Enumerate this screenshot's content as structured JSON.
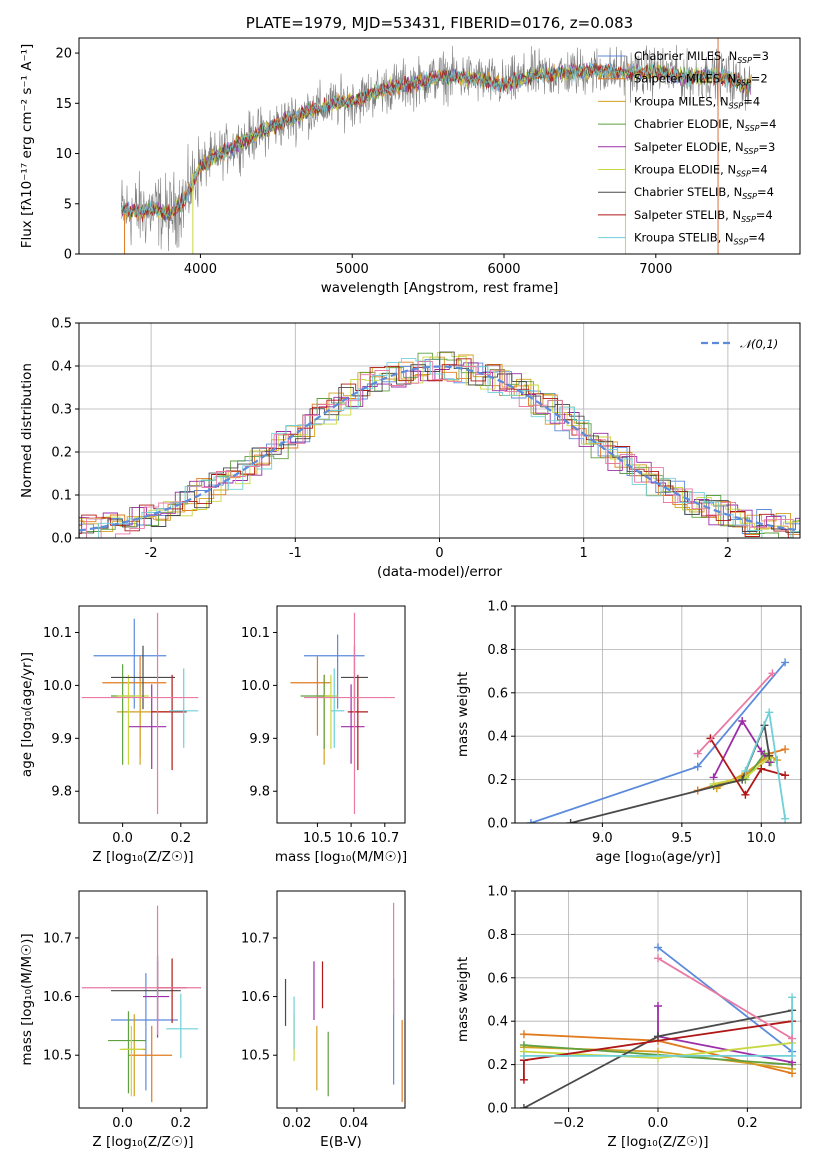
{
  "colors": {
    "series": [
      "#5B8BDB",
      "#E07B20",
      "#D4A020",
      "#5FA040",
      "#9C2EA8",
      "#C8D840",
      "#4A4A4A",
      "#B01818",
      "#6FD0D8"
    ],
    "pink": "#E87AA4",
    "model_spectrum": "#808080",
    "normal_curve": "#5B8BDB"
  },
  "chart_data": [
    {
      "id": "spectrum",
      "type": "line",
      "title": "PLATE=1979, MJD=53431, FIBERID=0176, z=0.083",
      "xlabel": "wavelength [Angstrom, rest frame]",
      "ylabel": "Flux [fλ10⁻¹⁷ erg cm⁻² s⁻¹ A⁻¹]",
      "xlim": [
        3200,
        7950
      ],
      "ylim": [
        0,
        21.5
      ],
      "xticks": [
        4000,
        5000,
        6000,
        7000
      ],
      "yticks": [
        0,
        5,
        10,
        15,
        20
      ],
      "grid": false,
      "legend_position": "top-right",
      "series": [
        {
          "name": "Chabrier MILES, N_SSP=3"
        },
        {
          "name": "Salpeter MILES, N_SSP=2"
        },
        {
          "name": "Kroupa MILES, N_SSP=4"
        },
        {
          "name": "Chabrier ELODIE, N_SSP=4"
        },
        {
          "name": "Salpeter ELODIE, N_SSP=3"
        },
        {
          "name": "Kroupa ELODIE, N_SSP=4"
        },
        {
          "name": "Chabrier STELIB, N_SSP=4"
        },
        {
          "name": "Salpeter STELIB, N_SSP=4"
        },
        {
          "name": "Kroupa STELIB, N_SSP=4"
        }
      ],
      "continuum": {
        "x": [
          3500,
          3600,
          3700,
          3800,
          3900,
          4000,
          4100,
          4200,
          4300,
          4400,
          4500,
          4600,
          4700,
          4800,
          4900,
          5000,
          5200,
          5400,
          5600,
          5800,
          6000,
          6200,
          6400,
          6600,
          6800,
          7000,
          7200,
          7400,
          7600
        ],
        "y": [
          4.3,
          4.2,
          4.4,
          4.0,
          5.5,
          8.7,
          9.7,
          10.6,
          11.4,
          12.2,
          12.8,
          13.5,
          14.2,
          14.6,
          15.0,
          15.2,
          16.4,
          17.0,
          17.7,
          17.5,
          16.8,
          17.8,
          18.0,
          18.3,
          18.0,
          18.2,
          17.6,
          17.8,
          16.8
        ]
      }
    },
    {
      "id": "residuals",
      "type": "line",
      "xlabel": "(data-model)/error",
      "ylabel": "Normed distribution",
      "xlim": [
        -2.5,
        2.5
      ],
      "ylim": [
        0,
        0.5
      ],
      "xticks": [
        -2,
        -1,
        0,
        1,
        2
      ],
      "yticks": [
        0.0,
        0.1,
        0.2,
        0.3,
        0.4,
        0.5
      ],
      "grid": true,
      "legend_position": "top-right",
      "legend": "𝒩(0,1)"
    },
    {
      "id": "age_vs_Z",
      "type": "scatter",
      "xlabel": "Z [log₁₀(Z/Z☉)]",
      "ylabel": "age  [log₁₀(age/yr)]",
      "xlim": [
        -0.15,
        0.29
      ],
      "ylim": [
        9.74,
        10.15
      ],
      "xticks": [
        0.0,
        0.2
      ],
      "yticks": [
        9.8,
        9.9,
        10.0,
        10.1
      ],
      "grid": false,
      "points": [
        {
          "x": 0.04,
          "y": 10.056,
          "xerr": [
            0.14,
            0.11
          ],
          "yerr": [
            0.1,
            0.07
          ]
        },
        {
          "x": 0.06,
          "y": 10.005,
          "xerr": [
            0.13,
            0.09
          ],
          "yerr": [
            0.14,
            0.05
          ]
        },
        {
          "x": 0.06,
          "y": 9.95,
          "xerr": [
            0.08,
            0.14
          ],
          "yerr": [
            0.1,
            0.06
          ]
        },
        {
          "x": 0.0,
          "y": 9.98,
          "xerr": [
            0.04,
            0.04
          ],
          "yerr": [
            0.13,
            0.06
          ]
        },
        {
          "x": 0.1,
          "y": 9.922,
          "xerr": [
            0.08,
            0.05
          ],
          "yerr": [
            0.08,
            0.08
          ]
        },
        {
          "x": 0.02,
          "y": 9.98,
          "xerr": [
            0.04,
            0.07
          ],
          "yerr": [
            0.13,
            0.04
          ]
        },
        {
          "x": 0.07,
          "y": 10.015,
          "xerr": [
            0.11,
            0.11
          ],
          "yerr": [
            0.06,
            0.06
          ]
        },
        {
          "x": 0.17,
          "y": 9.95,
          "xerr": [
            0.07,
            0.05
          ],
          "yerr": [
            0.11,
            0.07
          ]
        },
        {
          "x": 0.21,
          "y": 9.952,
          "xerr": [
            0.05,
            0.05
          ],
          "yerr": [
            0.07,
            0.08
          ]
        },
        {
          "x": 0.12,
          "y": 9.977,
          "xerr": [
            0.26,
            0.14
          ],
          "yerr": [
            0.22,
            0.16
          ]
        }
      ]
    },
    {
      "id": "age_vs_mass",
      "type": "scatter",
      "xlabel": "mass [log₁₀(M/M☉)]",
      "ylabel": "",
      "xlim": [
        10.38,
        10.76
      ],
      "ylim": [
        9.74,
        10.15
      ],
      "xticks": [
        10.5,
        10.6,
        10.7
      ],
      "yticks": [
        9.8,
        9.9,
        10.0,
        10.1
      ],
      "grid": false,
      "points": [
        {
          "x": 10.56,
          "y": 10.056,
          "xerr": [
            0.1,
            0.08
          ],
          "yerr": [
            0.1,
            0.04
          ]
        },
        {
          "x": 10.5,
          "y": 10.005,
          "xerr": [
            0.08,
            0.04
          ],
          "yerr": [
            0.1,
            0.05
          ]
        },
        {
          "x": 10.52,
          "y": 9.98,
          "xerr": [
            0.02,
            0.04
          ],
          "yerr": [
            0.13,
            0.04
          ]
        },
        {
          "x": 10.52,
          "y": 9.98,
          "xerr": [
            0.07,
            0.02
          ],
          "yerr": [
            0.1,
            0.04
          ]
        },
        {
          "x": 10.6,
          "y": 9.922,
          "xerr": [
            0.03,
            0.04
          ],
          "yerr": [
            0.07,
            0.08
          ]
        },
        {
          "x": 10.54,
          "y": 9.98,
          "xerr": [
            0.02,
            0.02
          ],
          "yerr": [
            0.1,
            0.04
          ]
        },
        {
          "x": 10.61,
          "y": 10.015,
          "xerr": [
            0.04,
            0.04
          ],
          "yerr": [
            0.06,
            0.06
          ]
        },
        {
          "x": 10.62,
          "y": 9.95,
          "xerr": [
            0.03,
            0.03
          ],
          "yerr": [
            0.11,
            0.07
          ]
        },
        {
          "x": 10.55,
          "y": 9.952,
          "xerr": [
            0.01,
            0.03
          ],
          "yerr": [
            0.07,
            0.08
          ]
        },
        {
          "x": 10.61,
          "y": 9.977,
          "xerr": [
            0.15,
            0.12
          ],
          "yerr": [
            0.22,
            0.16
          ]
        }
      ]
    },
    {
      "id": "mass_weight_vs_age",
      "type": "line",
      "xlabel": "age  [log₁₀(age/yr)]",
      "ylabel": "mass weight",
      "xlim": [
        8.45,
        10.25
      ],
      "ylim": [
        0,
        1
      ],
      "xticks": [
        9.0,
        9.5,
        10.0
      ],
      "yticks": [
        0.0,
        0.2,
        0.4,
        0.6,
        0.8,
        1.0
      ],
      "grid": true,
      "series": [
        {
          "x": [
            8.55,
            9.6,
            10.15
          ],
          "y": [
            0.0,
            0.26,
            0.74
          ]
        },
        {
          "x": [
            9.6,
            9.9,
            10.05,
            10.15
          ],
          "y": [
            0.15,
            0.22,
            0.32,
            0.34
          ]
        },
        {
          "x": [
            9.72,
            9.9,
            10.05,
            10.1
          ],
          "y": [
            0.16,
            0.23,
            0.31,
            0.29
          ]
        },
        {
          "x": [
            9.7,
            9.9,
            10.02,
            10.06
          ],
          "y": [
            0.17,
            0.2,
            0.32,
            0.28
          ]
        },
        {
          "x": [
            9.7,
            9.88,
            10.0,
            10.05
          ],
          "y": [
            0.21,
            0.47,
            0.33,
            0.28
          ]
        },
        {
          "x": [
            9.7,
            9.9,
            10.05
          ],
          "y": [
            0.18,
            0.21,
            0.3
          ]
        },
        {
          "x": [
            8.8,
            9.88,
            10.02,
            10.05
          ],
          "y": [
            0.0,
            0.2,
            0.45,
            0.31
          ]
        },
        {
          "x": [
            9.68,
            9.9,
            10.0,
            10.15
          ],
          "y": [
            0.39,
            0.13,
            0.25,
            0.22
          ]
        },
        {
          "x": [
            9.9,
            10.05,
            10.15
          ],
          "y": [
            0.24,
            0.51,
            0.02
          ]
        },
        {
          "x": [
            9.6,
            10.07
          ],
          "y": [
            0.32,
            0.69
          ]
        }
      ]
    },
    {
      "id": "mass_vs_Z",
      "type": "scatter",
      "xlabel": "Z [log₁₀(Z/Z☉)]",
      "ylabel": "mass [log₁₀(M/M☉)]",
      "xlim": [
        -0.15,
        0.29
      ],
      "ylim": [
        10.41,
        10.78
      ],
      "xticks": [
        0.0,
        0.2
      ],
      "yticks": [
        10.5,
        10.6,
        10.7
      ],
      "grid": false,
      "points": [
        {
          "x": 0.08,
          "y": 10.56,
          "xerr": [
            0.12,
            0.11
          ],
          "yerr": [
            0.12,
            0.08
          ]
        },
        {
          "x": 0.1,
          "y": 10.5,
          "xerr": [
            0.08,
            0.07
          ],
          "yerr": [
            0.08,
            0.05
          ]
        },
        {
          "x": 0.04,
          "y": 10.51,
          "xerr": [
            0.04,
            0.04
          ],
          "yerr": [
            0.08,
            0.06
          ]
        },
        {
          "x": 0.02,
          "y": 10.525,
          "xerr": [
            0.07,
            0.06
          ],
          "yerr": [
            0.09,
            0.05
          ]
        },
        {
          "x": 0.12,
          "y": 10.6,
          "xerr": [
            0.05,
            0.04
          ],
          "yerr": [
            0.07,
            0.06
          ]
        },
        {
          "x": 0.03,
          "y": 10.51,
          "xerr": [
            0.04,
            0.04
          ],
          "yerr": [
            0.08,
            0.04
          ]
        },
        {
          "x": 0.12,
          "y": 10.61,
          "xerr": [
            0.16,
            0.08
          ],
          "yerr": [
            0.05,
            0.06
          ]
        },
        {
          "x": 0.17,
          "y": 10.615,
          "xerr": [
            0.05,
            0.05
          ],
          "yerr": [
            0.06,
            0.05
          ]
        },
        {
          "x": 0.2,
          "y": 10.545,
          "xerr": [
            0.05,
            0.06
          ],
          "yerr": [
            0.05,
            0.06
          ]
        },
        {
          "x": 0.12,
          "y": 10.615,
          "xerr": [
            0.26,
            0.15
          ],
          "yerr": [
            0.08,
            0.14
          ]
        }
      ]
    },
    {
      "id": "mass_vs_ebv",
      "type": "scatter",
      "xlabel": "E(B-V)",
      "ylabel": "",
      "xlim": [
        0.013,
        0.058
      ],
      "ylim": [
        10.41,
        10.78
      ],
      "xticks": [
        0.02,
        0.04
      ],
      "yticks": [
        10.5,
        10.6,
        10.7
      ],
      "grid": false,
      "points": [
        {
          "x": 0.054,
          "y": 10.55,
          "yerr": [
            0.1,
            0.08
          ]
        },
        {
          "x": 0.057,
          "y": 10.49,
          "yerr": [
            0.07,
            0.07
          ]
        },
        {
          "x": 0.027,
          "y": 10.5,
          "yerr": [
            0.06,
            0.05
          ]
        },
        {
          "x": 0.031,
          "y": 10.49,
          "yerr": [
            0.06,
            0.05
          ]
        },
        {
          "x": 0.026,
          "y": 10.61,
          "yerr": [
            0.05,
            0.05
          ]
        },
        {
          "x": 0.019,
          "y": 10.53,
          "yerr": [
            0.04,
            0.04
          ]
        },
        {
          "x": 0.016,
          "y": 10.59,
          "yerr": [
            0.04,
            0.04
          ]
        },
        {
          "x": 0.029,
          "y": 10.62,
          "yerr": [
            0.04,
            0.04
          ]
        },
        {
          "x": 0.019,
          "y": 10.55,
          "yerr": [
            0.04,
            0.05
          ]
        },
        {
          "x": 0.054,
          "y": 10.65,
          "yerr": [
            0.08,
            0.11
          ]
        }
      ]
    },
    {
      "id": "mass_weight_vs_Z",
      "type": "line",
      "xlabel": "Z [log₁₀(Z/Z☉)]",
      "ylabel": "mass weight",
      "xlim": [
        -0.32,
        0.32
      ],
      "ylim": [
        0,
        1
      ],
      "xticks": [
        -0.2,
        0.0,
        0.2
      ],
      "yticks": [
        0.0,
        0.2,
        0.4,
        0.6,
        0.8,
        1.0
      ],
      "grid": true,
      "series": [
        {
          "x": [
            0.0,
            0.3
          ],
          "y": [
            0.74,
            0.26
          ]
        },
        {
          "x": [
            -0.3,
            0.0,
            0.3
          ],
          "y": [
            0.34,
            0.31,
            0.16
          ]
        },
        {
          "x": [
            -0.3,
            0.0,
            0.3
          ],
          "y": [
            0.28,
            0.26,
            0.18
          ]
        },
        {
          "x": [
            -0.3,
            0.3
          ],
          "y": [
            0.29,
            0.2
          ]
        },
        {
          "x": [
            0.0,
            0.0,
            0.3
          ],
          "y": [
            0.47,
            0.33,
            0.21
          ]
        },
        {
          "x": [
            -0.3,
            0.0,
            0.3
          ],
          "y": [
            0.26,
            0.23,
            0.3
          ]
        },
        {
          "x": [
            -0.3,
            0.0,
            0.3
          ],
          "y": [
            0.0,
            0.33,
            0.45
          ]
        },
        {
          "x": [
            -0.3,
            -0.3,
            0.3
          ],
          "y": [
            0.13,
            0.22,
            0.4
          ]
        },
        {
          "x": [
            -0.3,
            0.3,
            0.3
          ],
          "y": [
            0.24,
            0.24,
            0.51
          ]
        },
        {
          "x": [
            0.0,
            0.3
          ],
          "y": [
            0.69,
            0.32
          ]
        }
      ]
    }
  ]
}
